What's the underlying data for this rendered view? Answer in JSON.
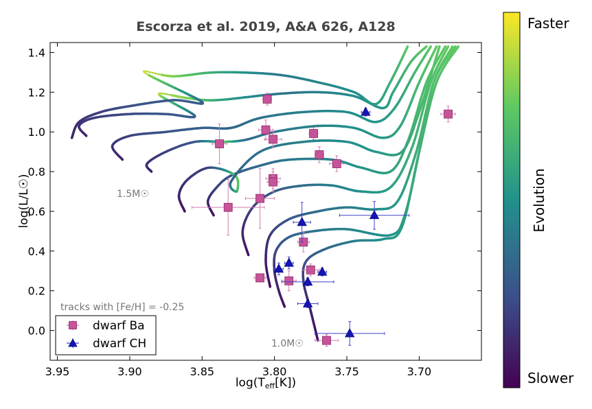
{
  "chart_data": {
    "type": "scatter",
    "title": "Escorza et al. 2019, A&A 626, A128",
    "xlabel": "log(T_eff[K])",
    "xlabel_main": "log(T",
    "xlabel_sub": "eff",
    "xlabel_tail": "[K])",
    "ylabel": "log(L/L☉)",
    "xlim": [
      3.955,
      3.657
    ],
    "ylim": [
      -0.15,
      1.45
    ],
    "xticks": [
      "3.95",
      "3.90",
      "3.85",
      "3.80",
      "3.75",
      "3.70"
    ],
    "xtick_values": [
      3.95,
      3.9,
      3.85,
      3.8,
      3.75,
      3.7
    ],
    "yticks": [
      "0.0",
      "0.2",
      "0.4",
      "0.6",
      "0.8",
      "1.0",
      "1.2",
      "1.4"
    ],
    "ytick_values": [
      0.0,
      0.2,
      0.4,
      0.6,
      0.8,
      1.0,
      1.2,
      1.4
    ],
    "legend_position": "lower-left",
    "grid": false,
    "annotations": {
      "tracks_note": "tracks with [Fe/H] = -0.25",
      "mass_high": "1.5M☉",
      "mass_low": "1.0M☉"
    },
    "colorbar": {
      "label": "Evolution",
      "top": "Faster",
      "bottom": "Slower",
      "colors": [
        "#440154",
        "#3b528b",
        "#21918c",
        "#5ec962",
        "#fde725"
      ]
    },
    "series": [
      {
        "name": "dwarf Ba",
        "marker": "square",
        "color": "#c6549a",
        "points": [
          {
            "x": 3.805,
            "y": 1.165,
            "xerr": 0.003,
            "yerr": 0.03
          },
          {
            "x": 3.806,
            "y": 1.01,
            "xerr": 0.005,
            "yerr": 0.05
          },
          {
            "x": 3.801,
            "y": 0.963,
            "xerr": 0.006,
            "yerr": 0.04
          },
          {
            "x": 3.773,
            "y": 0.992,
            "xerr": 0.003,
            "yerr": 0.03
          },
          {
            "x": 3.769,
            "y": 0.885,
            "xerr": 0.003,
            "yerr": 0.04
          },
          {
            "x": 3.757,
            "y": 0.84,
            "xerr": 0.005,
            "yerr": 0.04
          },
          {
            "x": 3.838,
            "y": 0.94,
            "xerr": 0.005,
            "yerr": 0.1
          },
          {
            "x": 3.801,
            "y": 0.765,
            "xerr": 0.005,
            "yerr": 0.05
          },
          {
            "x": 3.801,
            "y": 0.748,
            "xerr": 0.004,
            "yerr": 0.05
          },
          {
            "x": 3.81,
            "y": 0.665,
            "xerr": 0.01,
            "yerr": 0.15
          },
          {
            "x": 3.832,
            "y": 0.62,
            "xerr": 0.025,
            "yerr": 0.14
          },
          {
            "x": 3.68,
            "y": 1.09,
            "xerr": 0.005,
            "yerr": 0.04
          },
          {
            "x": 3.78,
            "y": 0.445,
            "xerr": 0.004,
            "yerr": 0.05
          },
          {
            "x": 3.775,
            "y": 0.305,
            "xerr": 0.006,
            "yerr": 0.03
          },
          {
            "x": 3.81,
            "y": 0.265,
            "xerr": 0.004,
            "yerr": 0.02
          },
          {
            "x": 3.79,
            "y": 0.25,
            "xerr": 0.005,
            "yerr": 0.05
          },
          {
            "x": 3.764,
            "y": -0.05,
            "xerr": 0.008,
            "yerr": 0.03
          }
        ]
      },
      {
        "name": "dwarf CH",
        "marker": "triangle",
        "color": "#1515b5",
        "points": [
          {
            "x": 3.737,
            "y": 1.1,
            "xerr": 0.003,
            "yerr": 0.02
          },
          {
            "x": 3.731,
            "y": 0.58,
            "xerr": 0.024,
            "yerr": 0.07
          },
          {
            "x": 3.781,
            "y": 0.545,
            "xerr": 0.006,
            "yerr": 0.1
          },
          {
            "x": 3.79,
            "y": 0.34,
            "xerr": 0.003,
            "yerr": 0.03
          },
          {
            "x": 3.797,
            "y": 0.31,
            "xerr": 0.003,
            "yerr": 0.03
          },
          {
            "x": 3.767,
            "y": 0.295,
            "xerr": 0.003,
            "yerr": 0.02
          },
          {
            "x": 3.777,
            "y": 0.245,
            "xerr": 0.018,
            "yerr": 0.02
          },
          {
            "x": 3.777,
            "y": 0.135,
            "xerr": 0.007,
            "yerr": 0.02
          },
          {
            "x": 3.748,
            "y": -0.015,
            "xerr": 0.024,
            "yerr": 0.06
          }
        ]
      }
    ],
    "tracks": [
      {
        "points": [
          [
            3.793,
            0.12
          ],
          [
            3.797,
            0.2
          ],
          [
            3.8,
            0.3
          ],
          [
            3.799,
            0.4
          ],
          [
            3.79,
            0.47
          ],
          [
            3.773,
            0.5
          ],
          [
            3.75,
            0.51
          ],
          [
            3.72,
            0.48
          ],
          [
            3.71,
            0.58
          ],
          [
            3.7,
            0.9
          ],
          [
            3.69,
            1.25
          ],
          [
            3.675,
            1.43
          ]
        ],
        "vals": [
          0.05,
          0.1,
          0.15,
          0.22,
          0.3,
          0.38,
          0.45,
          0.5,
          0.55,
          0.62,
          0.7,
          0.75
        ]
      },
      {
        "points": [
          [
            3.77,
            -0.05
          ],
          [
            3.775,
            0.1
          ],
          [
            3.78,
            0.25
          ],
          [
            3.778,
            0.35
          ],
          [
            3.765,
            0.41
          ],
          [
            3.745,
            0.45
          ],
          [
            3.725,
            0.46
          ],
          [
            3.712,
            0.52
          ],
          [
            3.7,
            0.9
          ],
          [
            3.688,
            1.25
          ],
          [
            3.673,
            1.43
          ]
        ],
        "vals": [
          0.05,
          0.1,
          0.18,
          0.25,
          0.33,
          0.42,
          0.5,
          0.55,
          0.63,
          0.7,
          0.75
        ]
      },
      {
        "points": [
          [
            3.803,
            0.22
          ],
          [
            3.806,
            0.35
          ],
          [
            3.803,
            0.48
          ],
          [
            3.79,
            0.56
          ],
          [
            3.77,
            0.6
          ],
          [
            3.75,
            0.62
          ],
          [
            3.73,
            0.61
          ],
          [
            3.715,
            0.65
          ],
          [
            3.702,
            0.9
          ],
          [
            3.69,
            1.25
          ],
          [
            3.677,
            1.43
          ]
        ],
        "vals": [
          0.05,
          0.1,
          0.18,
          0.27,
          0.35,
          0.42,
          0.48,
          0.53,
          0.62,
          0.7,
          0.75
        ]
      },
      {
        "points": [
          [
            3.818,
            0.38
          ],
          [
            3.822,
            0.5
          ],
          [
            3.815,
            0.62
          ],
          [
            3.8,
            0.7
          ],
          [
            3.78,
            0.73
          ],
          [
            3.76,
            0.73
          ],
          [
            3.74,
            0.7
          ],
          [
            3.72,
            0.72
          ],
          [
            3.705,
            0.92
          ],
          [
            3.692,
            1.25
          ],
          [
            3.68,
            1.43
          ]
        ],
        "vals": [
          0.05,
          0.12,
          0.2,
          0.28,
          0.36,
          0.43,
          0.5,
          0.55,
          0.63,
          0.7,
          0.75
        ]
      },
      {
        "points": [
          [
            3.842,
            0.58
          ],
          [
            3.846,
            0.65
          ],
          [
            3.84,
            0.72
          ],
          [
            3.83,
            0.78
          ],
          [
            3.81,
            0.83
          ],
          [
            3.79,
            0.86
          ],
          [
            3.76,
            0.86
          ],
          [
            3.74,
            0.82
          ],
          [
            3.72,
            0.8
          ],
          [
            3.708,
            0.95
          ],
          [
            3.695,
            1.25
          ],
          [
            3.682,
            1.43
          ]
        ],
        "vals": [
          0.05,
          0.12,
          0.2,
          0.27,
          0.34,
          0.4,
          0.47,
          0.52,
          0.56,
          0.63,
          0.7,
          0.75
        ]
      },
      {
        "points": [
          [
            3.862,
            0.6
          ],
          [
            3.866,
            0.68
          ],
          [
            3.86,
            0.76
          ],
          [
            3.845,
            0.82
          ],
          [
            3.827,
            0.78
          ],
          [
            3.826,
            0.7
          ],
          [
            3.83,
            0.75
          ],
          [
            3.81,
            0.9
          ],
          [
            3.78,
            0.95
          ],
          [
            3.75,
            0.95
          ],
          [
            3.73,
            0.9
          ],
          [
            3.712,
            0.9
          ],
          [
            3.7,
            1.1
          ],
          [
            3.686,
            1.43
          ]
        ],
        "vals": [
          0.05,
          0.1,
          0.15,
          0.2,
          0.75,
          0.68,
          0.3,
          0.38,
          0.44,
          0.49,
          0.53,
          0.57,
          0.66,
          0.75
        ]
      },
      {
        "points": [
          [
            3.885,
            0.8
          ],
          [
            3.888,
            0.84
          ],
          [
            3.875,
            0.9
          ],
          [
            3.855,
            0.95
          ],
          [
            3.835,
            0.95
          ],
          [
            3.82,
            0.96
          ],
          [
            3.8,
            1.0
          ],
          [
            3.77,
            1.03
          ],
          [
            3.745,
            1.02
          ],
          [
            3.725,
            0.97
          ],
          [
            3.713,
            1.03
          ],
          [
            3.7,
            1.25
          ],
          [
            3.688,
            1.43
          ]
        ],
        "vals": [
          0.1,
          0.14,
          0.2,
          0.27,
          0.72,
          0.35,
          0.4,
          0.45,
          0.5,
          0.54,
          0.58,
          0.68,
          0.75
        ]
      },
      {
        "points": [
          [
            3.905,
            0.86
          ],
          [
            3.912,
            0.93
          ],
          [
            3.9,
            0.98
          ],
          [
            3.875,
            1.0
          ],
          [
            3.85,
            1.02
          ],
          [
            3.83,
            1.02
          ],
          [
            3.81,
            1.07
          ],
          [
            3.78,
            1.1
          ],
          [
            3.75,
            1.1
          ],
          [
            3.73,
            1.05
          ],
          [
            3.717,
            1.12
          ],
          [
            3.703,
            1.3
          ],
          [
            3.692,
            1.43
          ]
        ],
        "vals": [
          0.1,
          0.15,
          0.2,
          0.26,
          0.3,
          0.33,
          0.38,
          0.43,
          0.48,
          0.52,
          0.56,
          0.66,
          0.75
        ]
      },
      {
        "points": [
          [
            3.93,
            0.98
          ],
          [
            3.935,
            1.03
          ],
          [
            3.925,
            1.07
          ],
          [
            3.9,
            1.09
          ],
          [
            3.875,
            1.09
          ],
          [
            3.855,
            1.08
          ],
          [
            3.88,
            1.19
          ],
          [
            3.86,
            1.17
          ],
          [
            3.84,
            1.16
          ],
          [
            3.8,
            1.19
          ],
          [
            3.77,
            1.2
          ],
          [
            3.745,
            1.18
          ],
          [
            3.725,
            1.12
          ],
          [
            3.718,
            1.2
          ],
          [
            3.706,
            1.35
          ],
          [
            3.695,
            1.43
          ]
        ],
        "vals": [
          0.1,
          0.14,
          0.18,
          0.23,
          0.27,
          0.3,
          0.9,
          0.8,
          0.6,
          0.38,
          0.43,
          0.48,
          0.52,
          0.58,
          0.68,
          0.75
        ]
      },
      {
        "points": [
          [
            3.94,
            0.97
          ],
          [
            3.935,
            1.05
          ],
          [
            3.92,
            1.1
          ],
          [
            3.9,
            1.13
          ],
          [
            3.87,
            1.16
          ],
          [
            3.85,
            1.15
          ],
          [
            3.89,
            1.3
          ],
          [
            3.87,
            1.28
          ],
          [
            3.84,
            1.3
          ],
          [
            3.8,
            1.29
          ],
          [
            3.77,
            1.25
          ],
          [
            3.745,
            1.2
          ],
          [
            3.73,
            1.14
          ],
          [
            3.72,
            1.25
          ],
          [
            3.708,
            1.43
          ]
        ],
        "vals": [
          0.1,
          0.14,
          0.19,
          0.24,
          0.28,
          0.3,
          0.95,
          0.8,
          0.6,
          0.4,
          0.45,
          0.5,
          0.55,
          0.62,
          0.75
        ]
      }
    ]
  }
}
